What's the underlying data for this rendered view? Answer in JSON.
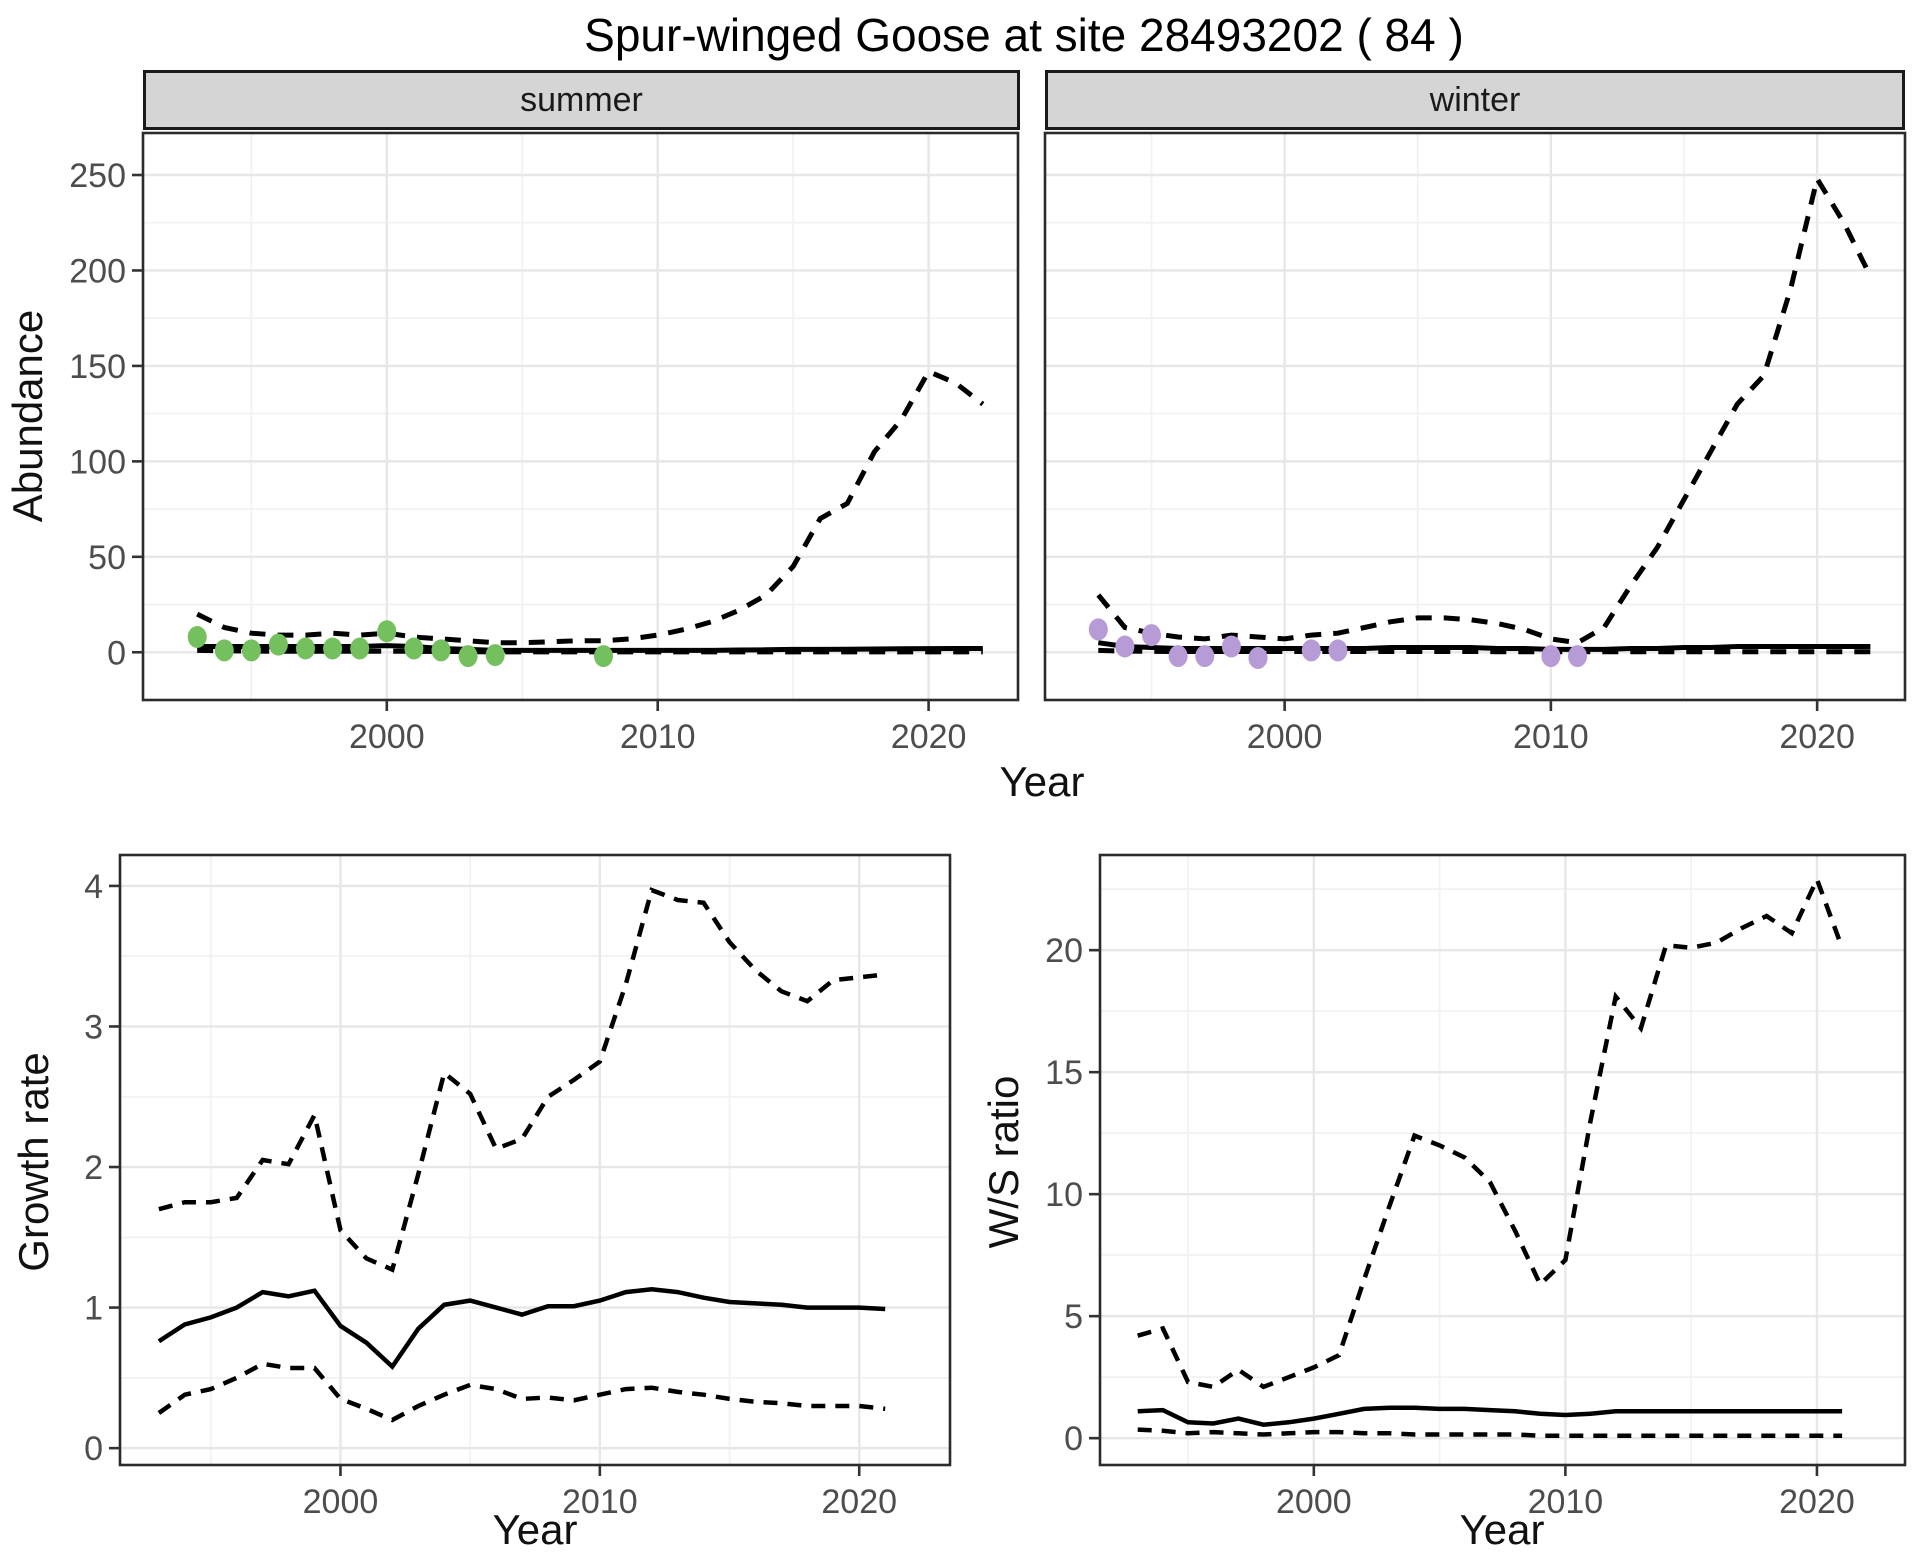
{
  "title": "Spur-winged Goose at site 28493202 ( 84 )",
  "facets": {
    "summer": "summer",
    "winter": "winter"
  },
  "axes": {
    "abundance_label": "Abundance",
    "year_label": "Year",
    "growth_label": "Growth rate",
    "ws_label": "W/S ratio"
  },
  "colors": {
    "summer_point": "#74c05e",
    "winter_point": "#b79bd6",
    "line": "#000000",
    "grid_major": "#e7e7e7",
    "grid_minor": "#f2f2f2",
    "strip_fill": "#d5d5d5",
    "panel_border": "#2b2b2b",
    "axis_text": "#4d4d4d",
    "tick_mark": "#333333"
  },
  "chart_data": [
    {
      "id": "abundance-summer",
      "type": "line",
      "facet": "summer",
      "xlabel": "Year",
      "ylabel": "Abundance",
      "xlim": [
        1991.0,
        2023.3
      ],
      "ylim": [
        -25,
        272
      ],
      "xticks": [
        2000,
        2010,
        2020
      ],
      "yticks": [
        0,
        50,
        100,
        150,
        200,
        250
      ],
      "xminor": [
        1995,
        2005,
        2015
      ],
      "yminor": [
        25,
        75,
        125,
        175,
        225
      ],
      "x": [
        1993,
        1994,
        1995,
        1996,
        1997,
        1998,
        1999,
        2000,
        2001,
        2002,
        2003,
        2004,
        2005,
        2006,
        2007,
        2008,
        2009,
        2010,
        2011,
        2012,
        2013,
        2014,
        2015,
        2016,
        2017,
        2018,
        2019,
        2020,
        2021,
        2022
      ],
      "series": [
        {
          "name": "upper_ci",
          "style": "dashed",
          "values": [
            20,
            13,
            10,
            9,
            9,
            10,
            9,
            10,
            8,
            7,
            6,
            5,
            5,
            5.5,
            6,
            6,
            7,
            9,
            12,
            16,
            22,
            30,
            45,
            70,
            78,
            105,
            122,
            147,
            141,
            130
          ]
        },
        {
          "name": "median",
          "style": "solid",
          "values": [
            3,
            3,
            3,
            3,
            3,
            3,
            3,
            3.5,
            3,
            2,
            1.5,
            1,
            1,
            1,
            1,
            1,
            1,
            1,
            1,
            1,
            1.2,
            1.3,
            1.5,
            1.5,
            1.6,
            1.7,
            1.8,
            1.9,
            2,
            2
          ]
        },
        {
          "name": "lower_ci",
          "style": "dashed",
          "values": [
            1,
            0.8,
            0.6,
            0.5,
            0.5,
            0.5,
            0.5,
            0.5,
            0.5,
            0.4,
            0.3,
            0.2,
            0.2,
            0.2,
            0.2,
            0.2,
            0.2,
            0.2,
            0.2,
            0.2,
            0.2,
            0.2,
            0.2,
            0.2,
            0.2,
            0.2,
            0.2,
            0.2,
            0.2,
            0.2
          ]
        }
      ],
      "points": {
        "name": "observed-counts-summer",
        "color": "#74c05e",
        "x": [
          1993,
          1994,
          1995,
          1996,
          1997,
          1998,
          1999,
          2000,
          2001,
          2002,
          2003,
          2004,
          2008
        ],
        "y": [
          8,
          1,
          1,
          4,
          2,
          2,
          2,
          11,
          2,
          1,
          -2,
          -1.5,
          -2
        ]
      }
    },
    {
      "id": "abundance-winter",
      "type": "line",
      "facet": "winter",
      "xlabel": "Year",
      "ylabel": "Abundance",
      "xlim": [
        1991.0,
        2023.3
      ],
      "ylim": [
        -25,
        272
      ],
      "xticks": [
        2000,
        2010,
        2020
      ],
      "yticks": [
        0,
        50,
        100,
        150,
        200,
        250
      ],
      "xminor": [
        1995,
        2005,
        2015
      ],
      "yminor": [
        25,
        75,
        125,
        175,
        225
      ],
      "x": [
        1993,
        1994,
        1995,
        1996,
        1997,
        1998,
        1999,
        2000,
        2001,
        2002,
        2003,
        2004,
        2005,
        2006,
        2007,
        2008,
        2009,
        2010,
        2011,
        2012,
        2013,
        2014,
        2015,
        2016,
        2017,
        2018,
        2019,
        2020,
        2021,
        2022
      ],
      "series": [
        {
          "name": "upper_ci",
          "style": "dashed",
          "values": [
            30,
            13,
            10,
            8,
            7,
            9,
            8,
            7,
            9,
            10,
            13,
            16,
            18,
            18,
            17,
            15,
            12,
            7,
            5,
            13,
            35,
            55,
            80,
            105,
            130,
            145,
            190,
            248,
            225,
            197
          ]
        },
        {
          "name": "median",
          "style": "solid",
          "values": [
            5,
            3,
            2.5,
            2,
            2,
            2,
            2,
            2,
            2,
            2,
            2,
            2.5,
            2.5,
            2.5,
            2.5,
            2,
            2,
            1.5,
            1.5,
            1.5,
            2,
            2,
            2.5,
            2.5,
            3,
            3,
            3,
            3,
            3,
            3
          ]
        },
        {
          "name": "lower_ci",
          "style": "dashed",
          "values": [
            1,
            0.6,
            0.5,
            0.4,
            0.4,
            0.4,
            0.4,
            0.4,
            0.4,
            0.4,
            0.4,
            0.4,
            0.4,
            0.4,
            0.4,
            0.3,
            0.3,
            0.3,
            0.3,
            0.3,
            0.3,
            0.3,
            0.3,
            0.3,
            0.3,
            0.3,
            0.3,
            0.3,
            0.3,
            0.3
          ]
        }
      ],
      "points": {
        "name": "observed-counts-winter",
        "color": "#b79bd6",
        "x": [
          1993,
          1994,
          1995,
          1996,
          1997,
          1998,
          1999,
          2001,
          2002,
          2010,
          2011
        ],
        "y": [
          12,
          3,
          9,
          -2,
          -2,
          3,
          -3,
          1,
          1,
          -2,
          -2
        ]
      }
    },
    {
      "id": "growth-rate",
      "type": "line",
      "xlabel": "Year",
      "ylabel": "Growth rate",
      "xlim": [
        1991.5,
        2023.5
      ],
      "ylim": [
        -0.12,
        4.22
      ],
      "xticks": [
        2000,
        2010,
        2020
      ],
      "yticks": [
        0,
        1,
        2,
        3,
        4
      ],
      "xminor": [
        1995,
        2005,
        2015
      ],
      "yminor": [
        0.5,
        1.5,
        2.5,
        3.5
      ],
      "x": [
        1993,
        1994,
        1995,
        1996,
        1997,
        1998,
        1999,
        2000,
        2001,
        2002,
        2003,
        2004,
        2005,
        2006,
        2007,
        2008,
        2009,
        2010,
        2011,
        2012,
        2013,
        2014,
        2015,
        2016,
        2017,
        2018,
        2019,
        2020,
        2021
      ],
      "series": [
        {
          "name": "upper_ci",
          "style": "dashed",
          "values": [
            1.7,
            1.75,
            1.75,
            1.78,
            2.05,
            2.02,
            2.37,
            1.55,
            1.35,
            1.27,
            1.95,
            2.67,
            2.52,
            2.13,
            2.2,
            2.5,
            2.62,
            2.75,
            3.3,
            3.97,
            3.9,
            3.88,
            3.6,
            3.4,
            3.25,
            3.18,
            3.33,
            3.35,
            3.37
          ]
        },
        {
          "name": "median",
          "style": "solid",
          "values": [
            0.76,
            0.88,
            0.93,
            1.0,
            1.11,
            1.08,
            1.12,
            0.87,
            0.75,
            0.58,
            0.85,
            1.02,
            1.05,
            1.0,
            0.95,
            1.01,
            1.01,
            1.05,
            1.11,
            1.13,
            1.11,
            1.07,
            1.04,
            1.03,
            1.02,
            1.0,
            1.0,
            1.0,
            0.99
          ]
        },
        {
          "name": "lower_ci",
          "style": "dashed",
          "values": [
            0.25,
            0.38,
            0.42,
            0.5,
            0.6,
            0.57,
            0.57,
            0.35,
            0.28,
            0.2,
            0.3,
            0.38,
            0.45,
            0.42,
            0.35,
            0.36,
            0.34,
            0.38,
            0.42,
            0.43,
            0.4,
            0.38,
            0.35,
            0.33,
            0.32,
            0.3,
            0.3,
            0.3,
            0.28
          ]
        }
      ]
    },
    {
      "id": "ws-ratio",
      "type": "line",
      "xlabel": "Year",
      "ylabel": "W/S ratio",
      "xlim": [
        1991.5,
        2023.5
      ],
      "ylim": [
        -1.1,
        23.9
      ],
      "xticks": [
        2000,
        2010,
        2020
      ],
      "yticks": [
        0,
        5,
        10,
        15,
        20
      ],
      "xminor": [
        1995,
        2005,
        2015
      ],
      "yminor": [
        2.5,
        7.5,
        12.5,
        17.5,
        22.5
      ],
      "x": [
        1993,
        1994,
        1995,
        1996,
        1997,
        1998,
        1999,
        2000,
        2001,
        2002,
        2003,
        2004,
        2005,
        2006,
        2007,
        2008,
        2009,
        2010,
        2011,
        2012,
        2013,
        2014,
        2015,
        2016,
        2017,
        2018,
        2019,
        2020,
        2021
      ],
      "series": [
        {
          "name": "upper_ci",
          "style": "dashed",
          "values": [
            4.2,
            4.5,
            2.3,
            2.1,
            2.8,
            2.1,
            2.5,
            2.9,
            3.4,
            6.5,
            9.5,
            12.4,
            12.0,
            11.5,
            10.5,
            8.5,
            6.3,
            7.3,
            13.0,
            18.1,
            16.8,
            20.2,
            20.1,
            20.3,
            20.9,
            21.4,
            20.7,
            22.9,
            20.1
          ]
        },
        {
          "name": "median",
          "style": "solid",
          "values": [
            1.1,
            1.15,
            0.65,
            0.6,
            0.8,
            0.55,
            0.65,
            0.8,
            1.0,
            1.2,
            1.25,
            1.25,
            1.2,
            1.2,
            1.15,
            1.1,
            1.0,
            0.95,
            1.0,
            1.1,
            1.1,
            1.1,
            1.1,
            1.1,
            1.1,
            1.1,
            1.1,
            1.1,
            1.1
          ]
        },
        {
          "name": "lower_ci",
          "style": "dashed",
          "values": [
            0.35,
            0.3,
            0.2,
            0.25,
            0.2,
            0.15,
            0.2,
            0.25,
            0.25,
            0.2,
            0.2,
            0.15,
            0.15,
            0.15,
            0.15,
            0.15,
            0.1,
            0.1,
            0.1,
            0.1,
            0.1,
            0.1,
            0.1,
            0.1,
            0.1,
            0.1,
            0.1,
            0.1,
            0.1
          ]
        }
      ]
    }
  ]
}
